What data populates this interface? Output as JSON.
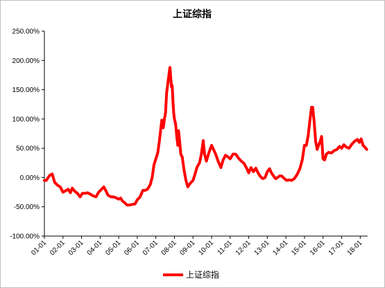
{
  "chart_data": {
    "type": "line",
    "title": "上证综指",
    "xlabel": "",
    "ylabel": "",
    "ylim": [
      -1.0,
      2.5
    ],
    "y_ticks": [
      {
        "value": 2.5,
        "label": "250.00%"
      },
      {
        "value": 2.0,
        "label": "200.00%"
      },
      {
        "value": 1.5,
        "label": "150.00%"
      },
      {
        "value": 1.0,
        "label": "100.00%"
      },
      {
        "value": 0.5,
        "label": "50.00%"
      },
      {
        "value": 0.0,
        "label": "0.00%"
      },
      {
        "value": -0.5,
        "label": "-50.00%"
      },
      {
        "value": -1.0,
        "label": "-100.00%"
      }
    ],
    "x_range": [
      2001.0,
      2018.4
    ],
    "x_ticks": [
      {
        "value": 2001.0,
        "label": "01-01"
      },
      {
        "value": 2002.0,
        "label": "02-01"
      },
      {
        "value": 2003.0,
        "label": "03-01"
      },
      {
        "value": 2004.0,
        "label": "04-01"
      },
      {
        "value": 2005.0,
        "label": "05-01"
      },
      {
        "value": 2006.0,
        "label": "06-01"
      },
      {
        "value": 2007.0,
        "label": "07-01"
      },
      {
        "value": 2008.0,
        "label": "08-01"
      },
      {
        "value": 2009.0,
        "label": "09-01"
      },
      {
        "value": 2010.0,
        "label": "10-01"
      },
      {
        "value": 2011.0,
        "label": "11-01"
      },
      {
        "value": 2012.0,
        "label": "12-01"
      },
      {
        "value": 2013.0,
        "label": "13-01"
      },
      {
        "value": 2014.0,
        "label": "14-01"
      },
      {
        "value": 2015.0,
        "label": "15-01"
      },
      {
        "value": 2016.0,
        "label": "16-01"
      },
      {
        "value": 2017.0,
        "label": "17-01"
      },
      {
        "value": 2018.0,
        "label": "18-01"
      }
    ],
    "grid": false,
    "legend": "bottom",
    "series": [
      {
        "name": "上证综指",
        "color": "#ff0000",
        "points": [
          [
            2001.0,
            -0.05
          ],
          [
            2001.1,
            -0.05
          ],
          [
            2001.2,
            0.0
          ],
          [
            2001.3,
            0.04
          ],
          [
            2001.42,
            0.06
          ],
          [
            2001.55,
            -0.08
          ],
          [
            2001.7,
            -0.13
          ],
          [
            2001.85,
            -0.16
          ],
          [
            2002.0,
            -0.25
          ],
          [
            2002.12,
            -0.23
          ],
          [
            2002.28,
            -0.2
          ],
          [
            2002.4,
            -0.26
          ],
          [
            2002.5,
            -0.18
          ],
          [
            2002.62,
            -0.23
          ],
          [
            2002.78,
            -0.27
          ],
          [
            2002.92,
            -0.33
          ],
          [
            2003.05,
            -0.27
          ],
          [
            2003.2,
            -0.27
          ],
          [
            2003.32,
            -0.26
          ],
          [
            2003.45,
            -0.28
          ],
          [
            2003.6,
            -0.31
          ],
          [
            2003.78,
            -0.33
          ],
          [
            2003.92,
            -0.25
          ],
          [
            2004.05,
            -0.21
          ],
          [
            2004.2,
            -0.16
          ],
          [
            2004.3,
            -0.22
          ],
          [
            2004.42,
            -0.3
          ],
          [
            2004.58,
            -0.33
          ],
          [
            2004.72,
            -0.33
          ],
          [
            2004.88,
            -0.35
          ],
          [
            2005.0,
            -0.37
          ],
          [
            2005.1,
            -0.35
          ],
          [
            2005.2,
            -0.4
          ],
          [
            2005.32,
            -0.43
          ],
          [
            2005.45,
            -0.47
          ],
          [
            2005.58,
            -0.47
          ],
          [
            2005.72,
            -0.46
          ],
          [
            2005.88,
            -0.45
          ],
          [
            2006.0,
            -0.38
          ],
          [
            2006.15,
            -0.33
          ],
          [
            2006.3,
            -0.22
          ],
          [
            2006.42,
            -0.22
          ],
          [
            2006.55,
            -0.2
          ],
          [
            2006.7,
            -0.12
          ],
          [
            2006.8,
            0.0
          ],
          [
            2006.9,
            0.22
          ],
          [
            2007.0,
            0.32
          ],
          [
            2007.1,
            0.42
          ],
          [
            2007.18,
            0.6
          ],
          [
            2007.26,
            0.82
          ],
          [
            2007.32,
            0.98
          ],
          [
            2007.4,
            0.85
          ],
          [
            2007.46,
            1.0
          ],
          [
            2007.52,
            1.1
          ],
          [
            2007.58,
            1.45
          ],
          [
            2007.65,
            1.62
          ],
          [
            2007.72,
            1.8
          ],
          [
            2007.76,
            1.88
          ],
          [
            2007.8,
            1.7
          ],
          [
            2007.84,
            1.55
          ],
          [
            2007.88,
            1.57
          ],
          [
            2007.92,
            1.3
          ],
          [
            2007.96,
            1.1
          ],
          [
            2008.0,
            1.0
          ],
          [
            2008.06,
            0.92
          ],
          [
            2008.12,
            0.72
          ],
          [
            2008.18,
            0.55
          ],
          [
            2008.22,
            0.8
          ],
          [
            2008.28,
            0.62
          ],
          [
            2008.34,
            0.4
          ],
          [
            2008.42,
            0.35
          ],
          [
            2008.52,
            0.12
          ],
          [
            2008.62,
            -0.05
          ],
          [
            2008.72,
            -0.16
          ],
          [
            2008.8,
            -0.12
          ],
          [
            2008.9,
            -0.08
          ],
          [
            2009.0,
            -0.05
          ],
          [
            2009.1,
            0.05
          ],
          [
            2009.22,
            0.18
          ],
          [
            2009.35,
            0.25
          ],
          [
            2009.45,
            0.4
          ],
          [
            2009.55,
            0.63
          ],
          [
            2009.62,
            0.4
          ],
          [
            2009.72,
            0.28
          ],
          [
            2009.85,
            0.42
          ],
          [
            2010.0,
            0.55
          ],
          [
            2010.1,
            0.48
          ],
          [
            2010.22,
            0.4
          ],
          [
            2010.35,
            0.28
          ],
          [
            2010.5,
            0.17
          ],
          [
            2010.62,
            0.3
          ],
          [
            2010.75,
            0.38
          ],
          [
            2010.85,
            0.36
          ],
          [
            2011.0,
            0.32
          ],
          [
            2011.15,
            0.4
          ],
          [
            2011.3,
            0.4
          ],
          [
            2011.45,
            0.33
          ],
          [
            2011.6,
            0.28
          ],
          [
            2011.75,
            0.24
          ],
          [
            2011.9,
            0.15
          ],
          [
            2012.0,
            0.08
          ],
          [
            2012.12,
            0.17
          ],
          [
            2012.25,
            0.1
          ],
          [
            2012.38,
            0.16
          ],
          [
            2012.5,
            0.08
          ],
          [
            2012.62,
            0.02
          ],
          [
            2012.75,
            -0.02
          ],
          [
            2012.88,
            0.0
          ],
          [
            2013.0,
            0.1
          ],
          [
            2013.12,
            0.15
          ],
          [
            2013.22,
            0.08
          ],
          [
            2013.35,
            0.02
          ],
          [
            2013.45,
            -0.02
          ],
          [
            2013.55,
            0.0
          ],
          [
            2013.68,
            0.03
          ],
          [
            2013.8,
            0.02
          ],
          [
            2013.92,
            -0.02
          ],
          [
            2014.05,
            -0.05
          ],
          [
            2014.18,
            -0.04
          ],
          [
            2014.3,
            -0.05
          ],
          [
            2014.45,
            -0.02
          ],
          [
            2014.6,
            0.05
          ],
          [
            2014.75,
            0.15
          ],
          [
            2014.88,
            0.3
          ],
          [
            2015.0,
            0.55
          ],
          [
            2015.1,
            0.55
          ],
          [
            2015.2,
            0.72
          ],
          [
            2015.3,
            1.0
          ],
          [
            2015.38,
            1.2
          ],
          [
            2015.44,
            1.2
          ],
          [
            2015.52,
            0.95
          ],
          [
            2015.6,
            0.62
          ],
          [
            2015.68,
            0.48
          ],
          [
            2015.76,
            0.55
          ],
          [
            2015.85,
            0.62
          ],
          [
            2015.92,
            0.7
          ],
          [
            2016.0,
            0.32
          ],
          [
            2016.08,
            0.3
          ],
          [
            2016.18,
            0.4
          ],
          [
            2016.3,
            0.43
          ],
          [
            2016.45,
            0.42
          ],
          [
            2016.6,
            0.46
          ],
          [
            2016.75,
            0.48
          ],
          [
            2016.88,
            0.53
          ],
          [
            2017.0,
            0.5
          ],
          [
            2017.12,
            0.56
          ],
          [
            2017.25,
            0.52
          ],
          [
            2017.4,
            0.5
          ],
          [
            2017.55,
            0.57
          ],
          [
            2017.7,
            0.62
          ],
          [
            2017.85,
            0.65
          ],
          [
            2017.95,
            0.6
          ],
          [
            2018.05,
            0.66
          ],
          [
            2018.15,
            0.55
          ],
          [
            2018.25,
            0.52
          ],
          [
            2018.35,
            0.48
          ]
        ]
      }
    ]
  }
}
